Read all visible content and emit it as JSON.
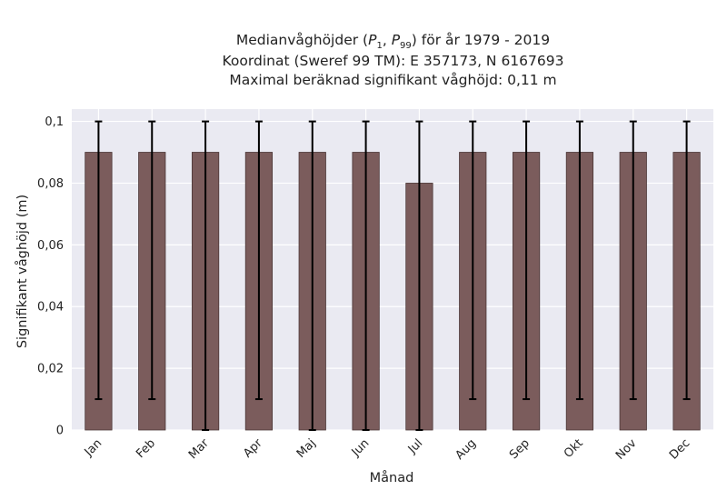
{
  "chart_data": {
    "type": "bar",
    "title_lines": [
      "Medianvåghöjder (P1, P99) för år 1979 - 2019",
      "Koordinat (Sweref 99 TM): E 357173, N 6167693",
      "Maximal beräknad signifikant våghöjd: 0,11 m"
    ],
    "xlabel": "Månad",
    "ylabel": "Signifikant våghöjd (m)",
    "categories": [
      "Jan",
      "Feb",
      "Mar",
      "Apr",
      "Maj",
      "Jun",
      "Jul",
      "Aug",
      "Sep",
      "Okt",
      "Nov",
      "Dec"
    ],
    "values": [
      0.09,
      0.09,
      0.09,
      0.09,
      0.09,
      0.09,
      0.08,
      0.09,
      0.09,
      0.09,
      0.09,
      0.09
    ],
    "error_low": [
      0.01,
      0.01,
      0.0,
      0.01,
      0.0,
      0.0,
      0.0,
      0.01,
      0.01,
      0.01,
      0.01,
      0.01
    ],
    "error_high": [
      0.1,
      0.1,
      0.1,
      0.1,
      0.1,
      0.1,
      0.1,
      0.1,
      0.1,
      0.1,
      0.1,
      0.1
    ],
    "ylim": [
      0,
      0.104
    ],
    "yticks": [
      0,
      0.02,
      0.04,
      0.06,
      0.08,
      0.1
    ],
    "ytick_labels": [
      "0",
      "0,02",
      "0,04",
      "0,06",
      "0,08",
      "0,1"
    ],
    "grid": true,
    "colors": {
      "bar": "#7b5c5c",
      "bar_edge": "#4a3535",
      "error_bar": "#000000",
      "plot_background": "#eaeaf2",
      "grid": "#ffffff"
    }
  }
}
